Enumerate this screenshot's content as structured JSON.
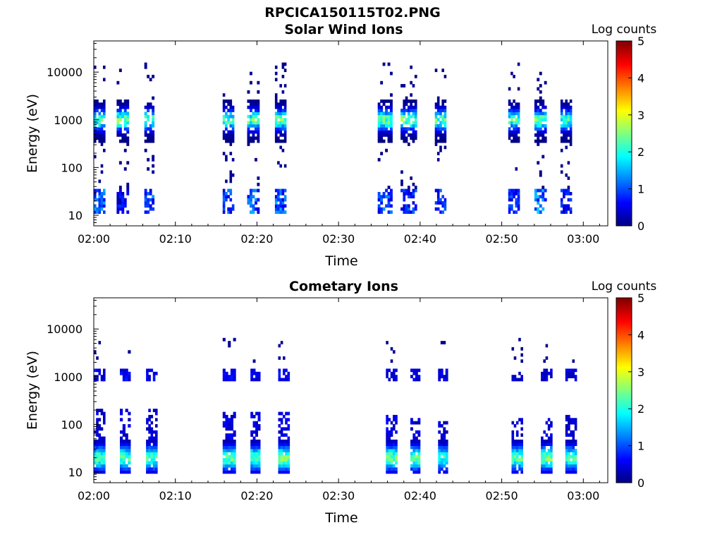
{
  "figure_title": "RPCICA150115T02.PNG",
  "chart_data": [
    {
      "type": "heatmap",
      "title": "Solar Wind Ions",
      "xlabel": "Time",
      "ylabel": "Energy (eV)",
      "x_ticks": [
        "02:00",
        "02:10",
        "02:20",
        "02:30",
        "02:40",
        "02:50",
        "03:00"
      ],
      "y_ticks": [
        "10",
        "100",
        "1000",
        "10000"
      ],
      "y_scale": "log",
      "ylim": [
        6,
        45000
      ],
      "xlim_minutes": [
        0,
        63
      ],
      "colorbar": {
        "label": "Log counts",
        "ticks": [
          "0",
          "1",
          "2",
          "3",
          "4",
          "5"
        ],
        "range": [
          0,
          5
        ],
        "colormap": "jet"
      },
      "bursts": [
        {
          "start_minute": 0.0,
          "end_minute": 1.4,
          "peak_energy_eV": 1000,
          "peak_log_counts": 2.8,
          "low_energy_eV": 20,
          "low_log_counts": 1.5
        },
        {
          "start_minute": 2.8,
          "end_minute": 4.3,
          "peak_energy_eV": 1000,
          "peak_log_counts": 3.0,
          "low_energy_eV": 20,
          "low_log_counts": 0.9
        },
        {
          "start_minute": 6.2,
          "end_minute": 7.4,
          "peak_energy_eV": 1000,
          "peak_log_counts": 2.7,
          "low_energy_eV": 20,
          "low_log_counts": 1.4
        },
        {
          "start_minute": 15.8,
          "end_minute": 17.2,
          "peak_energy_eV": 1000,
          "peak_log_counts": 2.6,
          "low_energy_eV": 20,
          "low_log_counts": 1.3
        },
        {
          "start_minute": 18.8,
          "end_minute": 20.3,
          "peak_energy_eV": 1000,
          "peak_log_counts": 2.8,
          "low_energy_eV": 20,
          "low_log_counts": 1.5
        },
        {
          "start_minute": 22.2,
          "end_minute": 23.6,
          "peak_energy_eV": 1000,
          "peak_log_counts": 2.8,
          "low_energy_eV": 20,
          "low_log_counts": 1.5
        },
        {
          "start_minute": 34.8,
          "end_minute": 36.6,
          "peak_energy_eV": 1000,
          "peak_log_counts": 2.9,
          "low_energy_eV": 20,
          "low_log_counts": 1.4
        },
        {
          "start_minute": 37.6,
          "end_minute": 39.6,
          "peak_energy_eV": 1000,
          "peak_log_counts": 2.9,
          "low_energy_eV": 20,
          "low_log_counts": 1.2
        },
        {
          "start_minute": 41.8,
          "end_minute": 43.2,
          "peak_energy_eV": 1000,
          "peak_log_counts": 2.8,
          "low_energy_eV": 20,
          "low_log_counts": 1.2
        },
        {
          "start_minute": 50.8,
          "end_minute": 52.2,
          "peak_energy_eV": 1000,
          "peak_log_counts": 2.6,
          "low_energy_eV": 20,
          "low_log_counts": 1.2
        },
        {
          "start_minute": 54.0,
          "end_minute": 55.5,
          "peak_energy_eV": 1000,
          "peak_log_counts": 2.8,
          "low_energy_eV": 20,
          "low_log_counts": 1.8
        },
        {
          "start_minute": 57.2,
          "end_minute": 58.6,
          "peak_energy_eV": 1000,
          "peak_log_counts": 2.6,
          "low_energy_eV": 20,
          "low_log_counts": 1.0
        }
      ]
    },
    {
      "type": "heatmap",
      "title": "Cometary Ions",
      "xlabel": "Time",
      "ylabel": "Energy (eV)",
      "x_ticks": [
        "02:00",
        "02:10",
        "02:20",
        "02:30",
        "02:40",
        "02:50",
        "03:00"
      ],
      "y_ticks": [
        "10",
        "100",
        "1000",
        "10000"
      ],
      "y_scale": "log",
      "ylim": [
        6,
        45000
      ],
      "xlim_minutes": [
        0,
        63
      ],
      "colorbar": {
        "label": "Log counts",
        "ticks": [
          "0",
          "1",
          "2",
          "3",
          "4",
          "5"
        ],
        "range": [
          0,
          5
        ],
        "colormap": "jet"
      },
      "bursts": [
        {
          "start_minute": 0.0,
          "end_minute": 1.4,
          "peak_energy_eV": 20,
          "peak_log_counts": 2.6,
          "mid_energy_eV": 80,
          "mid_log_counts": 0.6,
          "high_energy_eV": 1100,
          "high_log_counts": 0.8
        },
        {
          "start_minute": 3.2,
          "end_minute": 4.5,
          "peak_energy_eV": 20,
          "peak_log_counts": 2.6,
          "mid_energy_eV": 80,
          "mid_log_counts": 0.6,
          "high_energy_eV": 1100,
          "high_log_counts": 0.8
        },
        {
          "start_minute": 6.4,
          "end_minute": 7.8,
          "peak_energy_eV": 20,
          "peak_log_counts": 2.6,
          "mid_energy_eV": 80,
          "mid_log_counts": 0.6,
          "high_energy_eV": 1100,
          "high_log_counts": 0.8
        },
        {
          "start_minute": 15.8,
          "end_minute": 17.4,
          "peak_energy_eV": 20,
          "peak_log_counts": 2.7,
          "mid_energy_eV": 70,
          "mid_log_counts": 0.7,
          "high_energy_eV": 1100,
          "high_log_counts": 0.8
        },
        {
          "start_minute": 19.2,
          "end_minute": 20.4,
          "peak_energy_eV": 20,
          "peak_log_counts": 2.6,
          "mid_energy_eV": 70,
          "mid_log_counts": 0.7,
          "high_energy_eV": 1100,
          "high_log_counts": 0.7
        },
        {
          "start_minute": 22.6,
          "end_minute": 24.0,
          "peak_energy_eV": 20,
          "peak_log_counts": 2.9,
          "mid_energy_eV": 70,
          "mid_log_counts": 0.7,
          "high_energy_eV": 1100,
          "high_log_counts": 0.8
        },
        {
          "start_minute": 35.8,
          "end_minute": 37.2,
          "peak_energy_eV": 20,
          "peak_log_counts": 2.8,
          "mid_energy_eV": 60,
          "mid_log_counts": 0.7,
          "high_energy_eV": 1100,
          "high_log_counts": 0.6
        },
        {
          "start_minute": 38.8,
          "end_minute": 40.0,
          "peak_energy_eV": 20,
          "peak_log_counts": 2.7,
          "mid_energy_eV": 50,
          "mid_log_counts": 0.6,
          "high_energy_eV": 1100,
          "high_log_counts": 0.6
        },
        {
          "start_minute": 42.2,
          "end_minute": 43.4,
          "peak_energy_eV": 20,
          "peak_log_counts": 2.4,
          "mid_energy_eV": 40,
          "mid_log_counts": 0.6,
          "high_energy_eV": 1100,
          "high_log_counts": 0.6
        },
        {
          "start_minute": 51.2,
          "end_minute": 52.6,
          "peak_energy_eV": 20,
          "peak_log_counts": 2.7,
          "mid_energy_eV": 50,
          "mid_log_counts": 0.6,
          "high_energy_eV": 1100,
          "high_log_counts": 0.6
        },
        {
          "start_minute": 54.8,
          "end_minute": 56.2,
          "peak_energy_eV": 20,
          "peak_log_counts": 2.8,
          "mid_energy_eV": 50,
          "mid_log_counts": 0.6,
          "high_energy_eV": 1100,
          "high_log_counts": 0.6
        },
        {
          "start_minute": 57.8,
          "end_minute": 59.2,
          "peak_energy_eV": 20,
          "peak_log_counts": 2.5,
          "mid_energy_eV": 60,
          "mid_log_counts": 0.6,
          "high_energy_eV": 1100,
          "high_log_counts": 0.6
        }
      ]
    }
  ]
}
